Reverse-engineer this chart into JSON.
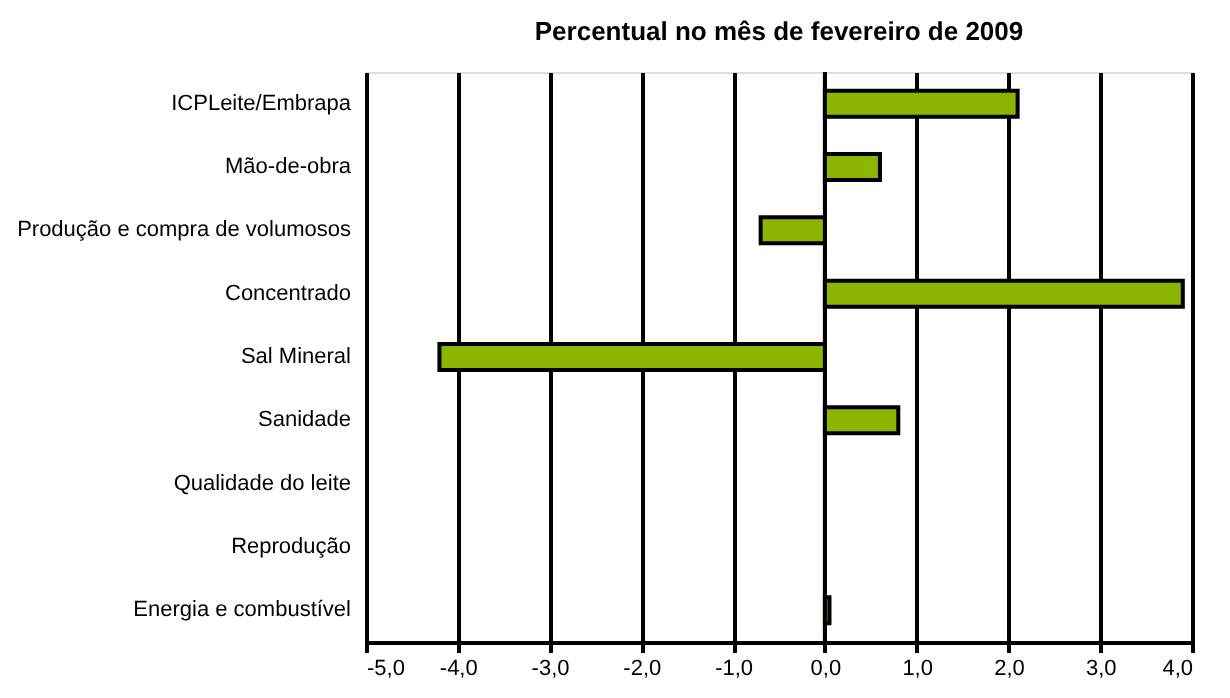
{
  "chart_data": {
    "type": "bar",
    "orientation": "horizontal",
    "title": "Percentual no mês de fevereiro de 2009",
    "categories": [
      "ICPLeite/Embrapa",
      "Mão-de-obra",
      "Produção e compra de volumosos",
      "Concentrado",
      "Sal Mineral",
      "Sanidade",
      "Qualidade do leite",
      "Reprodução",
      "Energia e combustível"
    ],
    "values": [
      2.1,
      0.6,
      -0.7,
      3.9,
      -4.2,
      0.8,
      null,
      null,
      0.05
    ],
    "color": "#8cb400",
    "xlim": [
      -5,
      4
    ],
    "xticks": [
      {
        "value": -5,
        "label": "-5,0"
      },
      {
        "value": -4,
        "label": "-4,0"
      },
      {
        "value": -3,
        "label": "-3,0"
      },
      {
        "value": -2,
        "label": "-2,0"
      },
      {
        "value": -1,
        "label": "-1,0"
      },
      {
        "value": 0,
        "label": "0,0"
      },
      {
        "value": 1,
        "label": "1,0"
      },
      {
        "value": 2,
        "label": "2,0"
      },
      {
        "value": 3,
        "label": "3,0"
      },
      {
        "value": 4,
        "label": "4,0"
      }
    ],
    "grid": "x"
  }
}
